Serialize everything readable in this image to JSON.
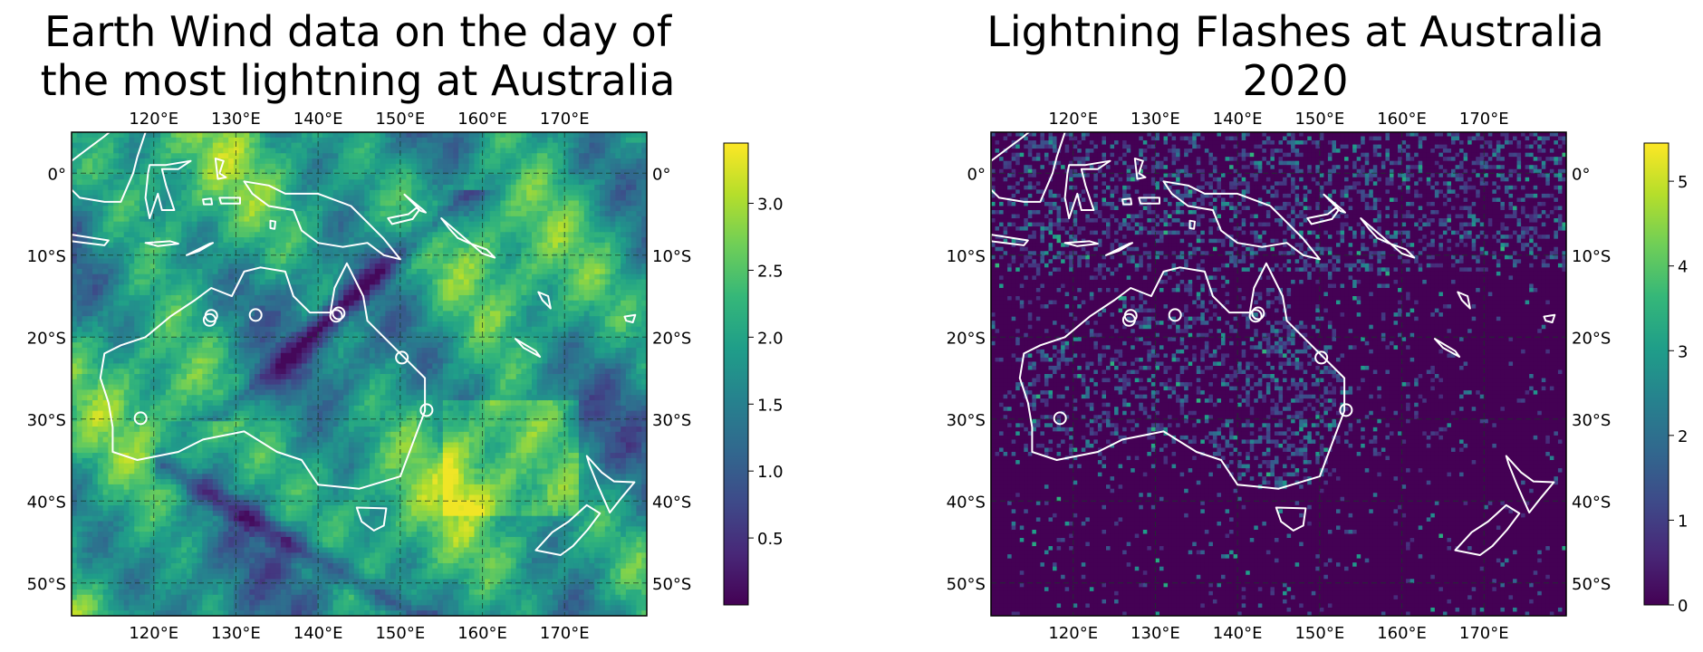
{
  "chart_data": [
    {
      "type": "heatmap",
      "title": "Earth Wind data on the day of the most lightning at Australia",
      "title_lines": [
        "Earth Wind data on the day of",
        "the most lightning at Australia"
      ],
      "lon_range": [
        110,
        180
      ],
      "lat_range": [
        -54,
        5
      ],
      "x_ticks": [
        "120°E",
        "130°E",
        "140°E",
        "150°E",
        "160°E",
        "170°E"
      ],
      "x_tick_values": [
        120,
        130,
        140,
        150,
        160,
        170
      ],
      "y_ticks": [
        "0°",
        "10°S",
        "20°S",
        "30°S",
        "40°S",
        "50°S"
      ],
      "y_tick_values": [
        0,
        -10,
        -20,
        -30,
        -40,
        -50
      ],
      "colorbar_ticks": [
        "0.5",
        "1.0",
        "1.5",
        "2.0",
        "2.5",
        "3.0"
      ],
      "colorbar_tick_values": [
        0.5,
        1.0,
        1.5,
        2.0,
        2.5,
        3.0
      ],
      "colorbar_range": [
        0.0,
        3.45
      ],
      "colormap": "viridis",
      "gridlines": true,
      "coastline_color": "#ffffff"
    },
    {
      "type": "heatmap",
      "title": "Lightning Flashes at Australia 2020",
      "title_lines": [
        "Lightning Flashes at Australia",
        "2020"
      ],
      "lon_range": [
        110,
        180
      ],
      "lat_range": [
        -54,
        5
      ],
      "x_ticks": [
        "120°E",
        "130°E",
        "140°E",
        "150°E",
        "160°E",
        "170°E"
      ],
      "x_tick_values": [
        120,
        130,
        140,
        150,
        160,
        170
      ],
      "y_ticks": [
        "0°",
        "10°S",
        "20°S",
        "30°S",
        "40°S",
        "50°S"
      ],
      "y_tick_values": [
        0,
        -10,
        -20,
        -30,
        -40,
        -50
      ],
      "colorbar_ticks": [
        "0",
        "1",
        "2",
        "3",
        "4",
        "5"
      ],
      "colorbar_tick_values": [
        0,
        1,
        2,
        3,
        4,
        5
      ],
      "colorbar_range": [
        0,
        5.45
      ],
      "colormap": "viridis",
      "gridlines": true,
      "coastline_color": "#ffffff"
    }
  ],
  "colors": {
    "viridis_stops": [
      "#440154",
      "#482878",
      "#3e4a89",
      "#31688e",
      "#26828e",
      "#1f9e89",
      "#35b779",
      "#6ece58",
      "#b5de2b",
      "#fde725"
    ],
    "grid": "#1a3a2a",
    "coast": "#ffffff"
  }
}
